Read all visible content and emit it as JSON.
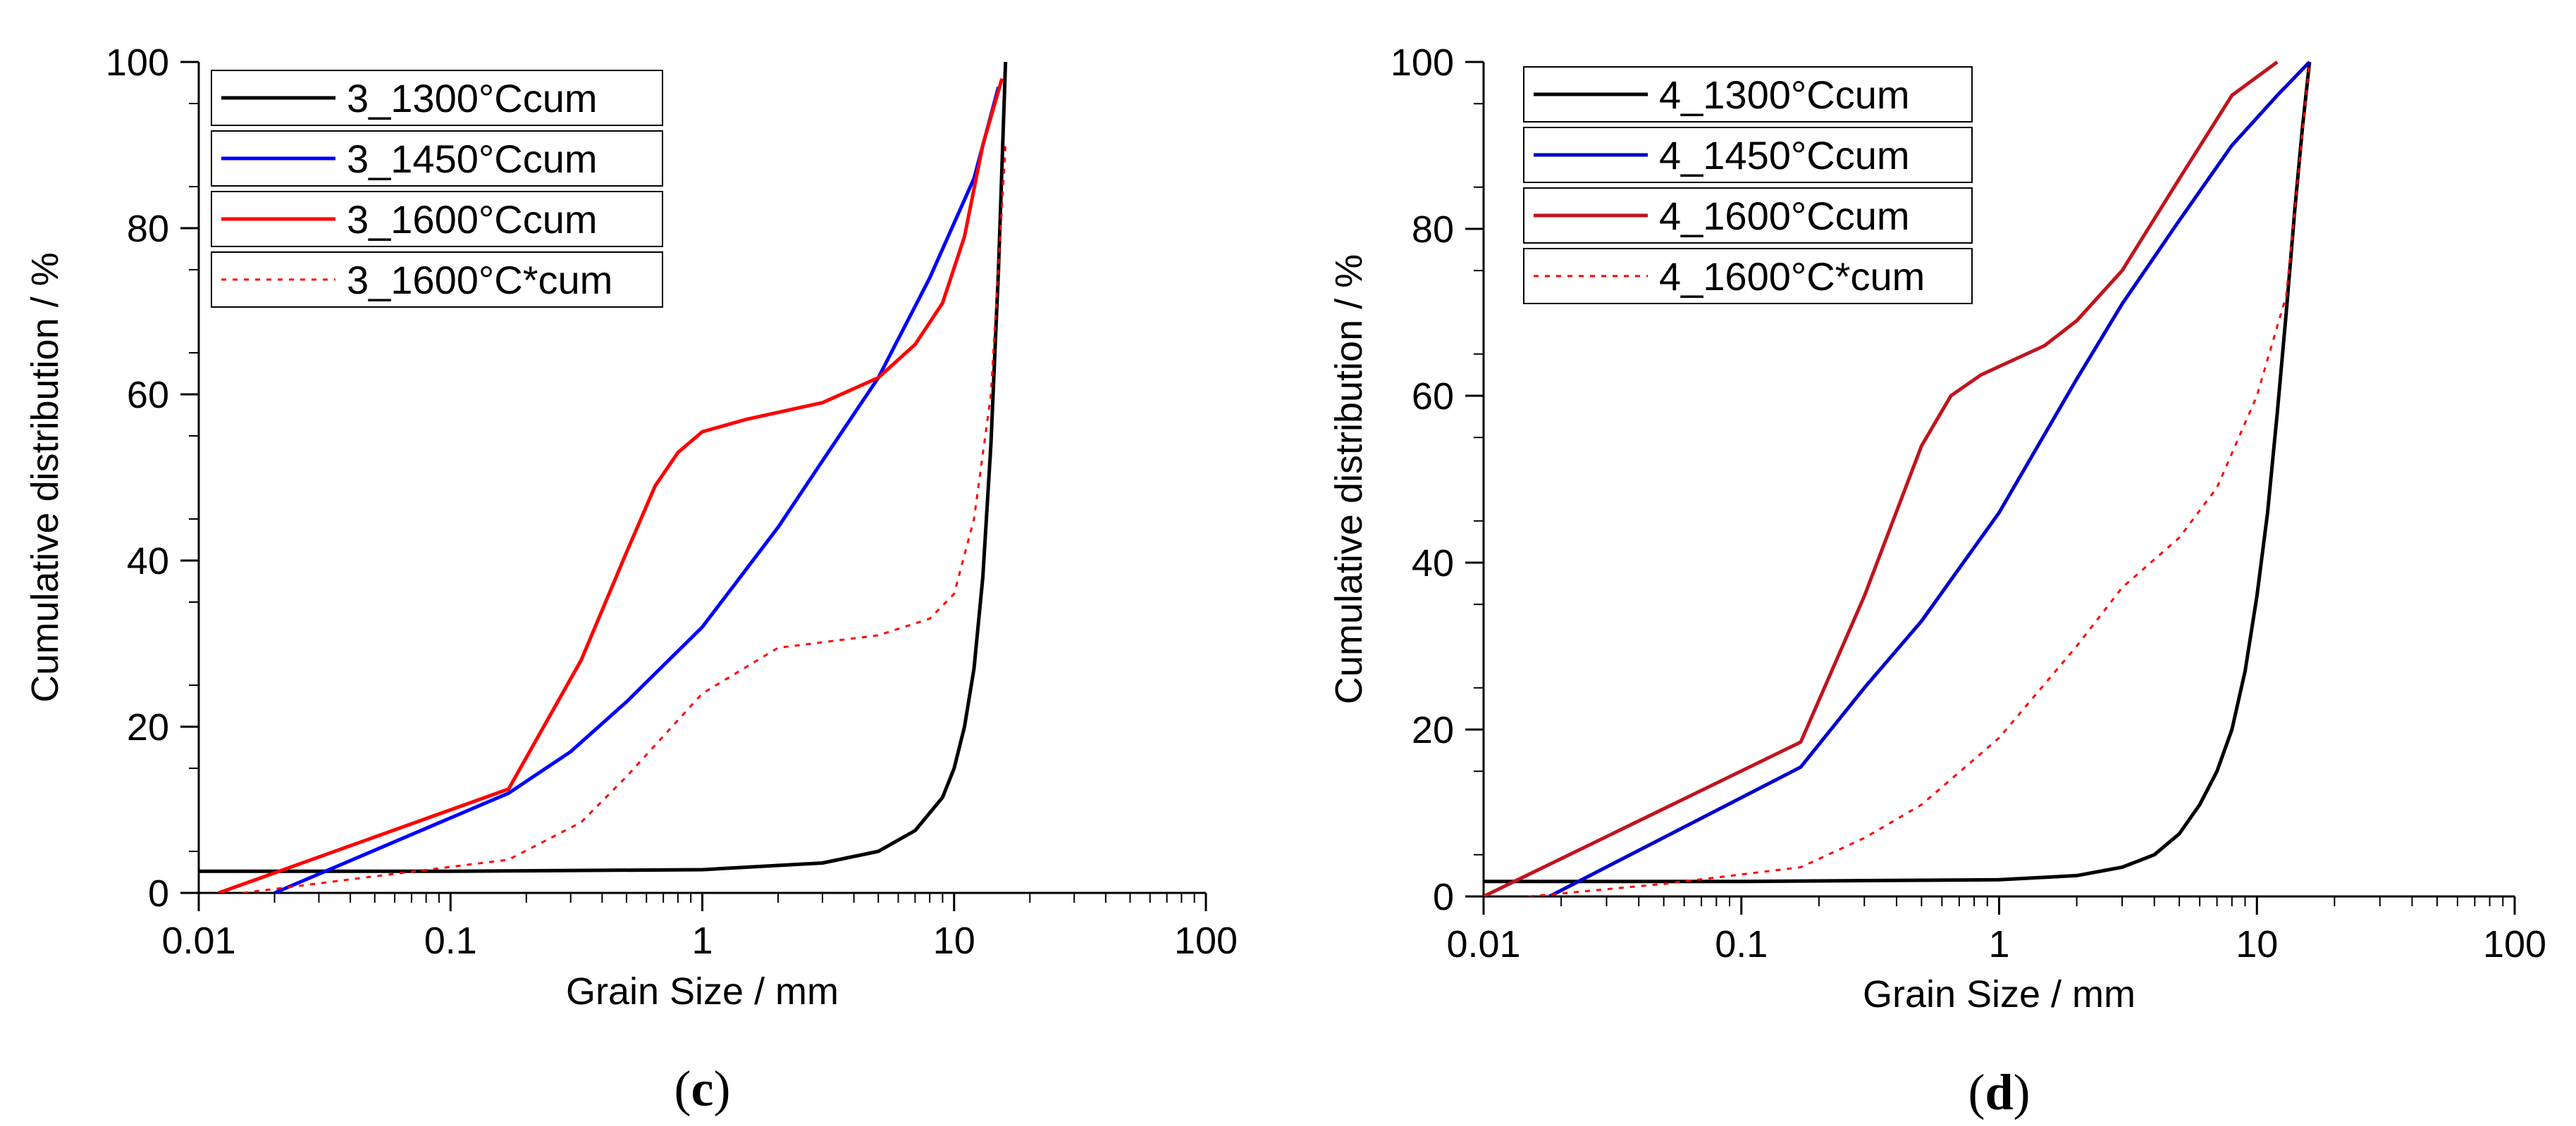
{
  "chart_data": [
    {
      "type": "line",
      "panel_label_prefix": "(",
      "panel_label_letter": "c",
      "panel_label_suffix": ")",
      "xlabel": "Grain Size / mm",
      "ylabel": "Cumulative distribution / %",
      "xscale": "log",
      "xlim": [
        0.01,
        100
      ],
      "ylim": [
        0,
        100
      ],
      "xticks": [
        0.01,
        0.1,
        1,
        10,
        100
      ],
      "xtick_labels": [
        "0.01",
        "0.1",
        "1",
        "10",
        "100"
      ],
      "yticks": [
        0,
        20,
        40,
        60,
        80,
        100
      ],
      "ytick_labels": [
        "0",
        "20",
        "40",
        "60",
        "80",
        "100"
      ],
      "legend_position": "top-left",
      "series": [
        {
          "name": "3_1300°Ccum",
          "color": "#000000",
          "style": "solid",
          "x": [
            0.01,
            0.1,
            1,
            3,
            5,
            7,
            9,
            10,
            11,
            12,
            13,
            14,
            15,
            16
          ],
          "y": [
            2.6,
            2.6,
            2.8,
            3.6,
            5.0,
            7.5,
            11.5,
            15.0,
            20.0,
            27.0,
            38.0,
            54.0,
            75.0,
            100.0
          ]
        },
        {
          "name": "3_1450°Ccum",
          "color": "#0000ff",
          "style": "solid",
          "x": [
            0.02,
            0.17,
            0.3,
            0.5,
            1,
            2,
            3,
            5,
            8,
            12,
            15
          ],
          "y": [
            0,
            12,
            17,
            23,
            32,
            44,
            52,
            62,
            74,
            86,
            97
          ]
        },
        {
          "name": "3_1600°Ccum",
          "color": "#ff0000",
          "style": "solid",
          "x": [
            0.012,
            0.17,
            0.33,
            0.5,
            0.65,
            0.8,
            1,
            1.5,
            3,
            5,
            7,
            9,
            11,
            13,
            15.5
          ],
          "y": [
            0,
            12.5,
            28,
            41,
            49,
            53,
            55.5,
            57,
            59,
            62,
            66,
            71,
            79,
            90,
            98
          ]
        },
        {
          "name": "3_1600°C*cum",
          "color": "#ff0000",
          "style": "dotted",
          "x": [
            0.015,
            0.05,
            0.17,
            0.33,
            0.5,
            1,
            2,
            5,
            8,
            10,
            12,
            14,
            16
          ],
          "y": [
            0,
            2,
            4,
            8.5,
            14,
            24,
            29.5,
            31,
            33,
            36,
            45,
            60,
            90
          ]
        }
      ]
    },
    {
      "type": "line",
      "panel_label_prefix": "(",
      "panel_label_letter": "d",
      "panel_label_suffix": ")",
      "xlabel": "Grain Size / mm",
      "ylabel": "Cumulative distribution / %",
      "xscale": "log",
      "xlim": [
        0.01,
        100
      ],
      "ylim": [
        0,
        100
      ],
      "xticks": [
        0.01,
        0.1,
        1,
        10,
        100
      ],
      "xtick_labels": [
        "0.01",
        "0.1",
        "1",
        "10",
        "100"
      ],
      "yticks": [
        0,
        20,
        40,
        60,
        80,
        100
      ],
      "ytick_labels": [
        "0",
        "20",
        "40",
        "60",
        "80",
        "100"
      ],
      "legend_position": "top-left",
      "series": [
        {
          "name": "4_1300°Ccum",
          "color": "#000000",
          "style": "solid",
          "x": [
            0.01,
            0.1,
            1,
            2,
            3,
            4,
            5,
            6,
            7,
            8,
            9,
            10,
            11,
            12,
            13,
            14,
            15,
            16
          ],
          "y": [
            1.8,
            1.8,
            2.0,
            2.5,
            3.5,
            5.0,
            7.5,
            11.0,
            15.0,
            20.0,
            27.0,
            36.0,
            46.0,
            58.0,
            70.0,
            82.0,
            92.0,
            100.0
          ]
        },
        {
          "name": "4_1450°Ccum",
          "color": "#0000cd",
          "style": "solid",
          "x": [
            0.018,
            0.17,
            0.3,
            0.5,
            1,
            2,
            3,
            5,
            8,
            12,
            16
          ],
          "y": [
            0,
            15.5,
            25,
            33,
            46,
            62,
            71,
            81,
            90,
            96,
            100
          ]
        },
        {
          "name": "4_1600°Ccum",
          "color": "#c0141e",
          "style": "solid",
          "x": [
            0.01,
            0.17,
            0.3,
            0.5,
            0.65,
            0.85,
            1,
            1.5,
            2,
            3,
            5,
            8,
            12
          ],
          "y": [
            0,
            18.5,
            36,
            54,
            60,
            62.5,
            63.5,
            66,
            69,
            75,
            86,
            96,
            100
          ]
        },
        {
          "name": "4_1600°C*cum",
          "color": "#ff0000",
          "style": "dotted",
          "x": [
            0.015,
            0.05,
            0.17,
            0.3,
            0.5,
            1,
            2,
            3,
            5,
            7,
            10,
            13,
            16
          ],
          "y": [
            0,
            1.5,
            3.5,
            7,
            11,
            19,
            30,
            37,
            43,
            49,
            60,
            72,
            100
          ]
        }
      ]
    }
  ]
}
